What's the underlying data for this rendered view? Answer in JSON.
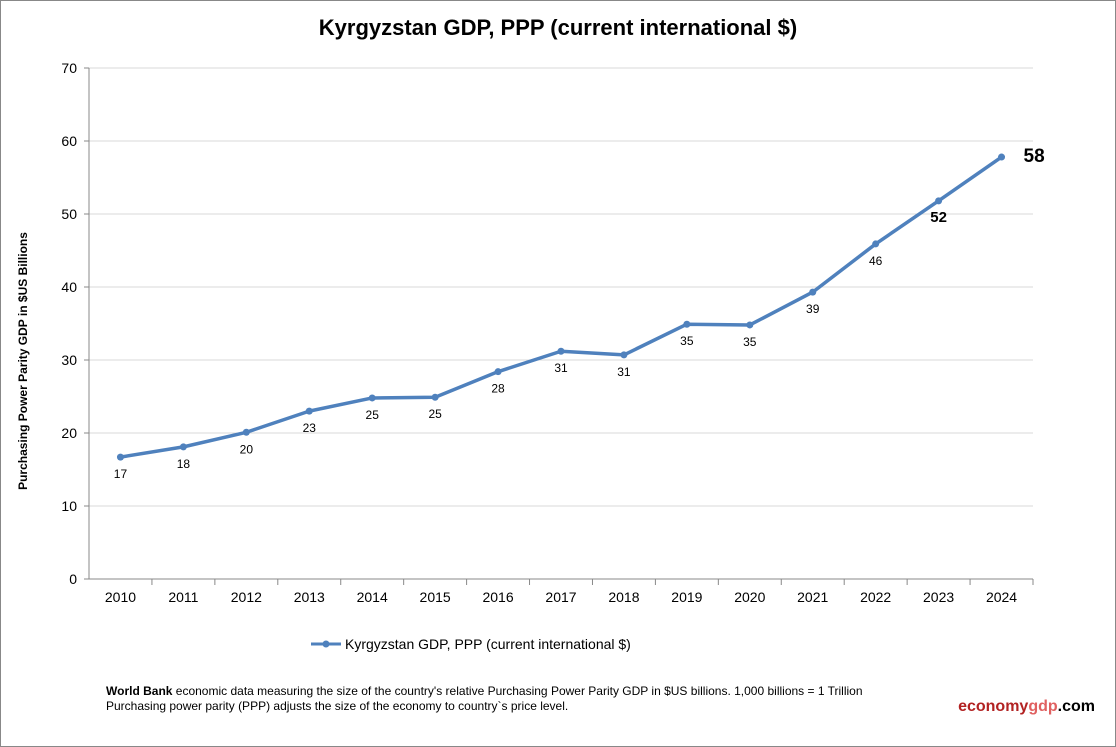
{
  "chart_data": {
    "type": "line",
    "title": "Kyrgyzstan GDP, PPP (current international $)",
    "ylabel": "Purchasing Power Parity GDP in $US Billions",
    "xlabel": "",
    "categories": [
      "2010",
      "2011",
      "2012",
      "2013",
      "2014",
      "2015",
      "2016",
      "2017",
      "2018",
      "2019",
      "2020",
      "2021",
      "2022",
      "2023",
      "2024"
    ],
    "series": [
      {
        "name": "Kyrgyzstan GDP, PPP (current international $)",
        "values": [
          16.7,
          18.1,
          20.1,
          23.0,
          24.8,
          24.9,
          28.4,
          31.2,
          30.7,
          34.9,
          34.8,
          39.3,
          45.9,
          51.8,
          57.8
        ],
        "labels": [
          "17",
          "18",
          "20",
          "23",
          "25",
          "25",
          "28",
          "31",
          "31",
          "35",
          "35",
          "39",
          "46",
          "52",
          "58"
        ]
      }
    ],
    "ylim": [
      0,
      70
    ],
    "yticks": [
      "0",
      "10",
      "20",
      "30",
      "40",
      "50",
      "60",
      "70"
    ],
    "grid": true,
    "legend_position": "bottom",
    "color": "#4f81bd"
  },
  "footer": {
    "bold": "World Bank",
    "line1": " economic data  measuring the size of the country's relative  Purchasing Power Parity GDP in $US billions. 1,000 billions = 1 Trillion",
    "line2": "Purchasing power parity (PPP) adjusts the size of the economy to country`s price level."
  },
  "brand": {
    "part1": "economy",
    "part2": "gdp",
    "part3": ".com",
    "color1": "#b22222",
    "color2": "#e06060"
  }
}
